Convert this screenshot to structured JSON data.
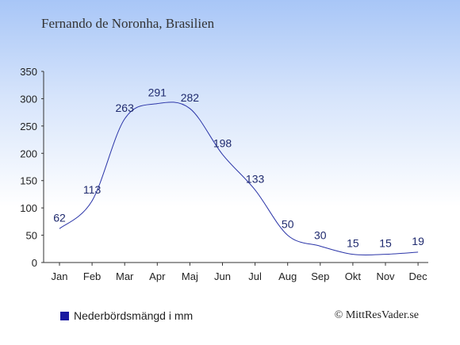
{
  "title": "Fernando de Noronha, Brasilien",
  "legend": {
    "label": "Nederbördsmängd i mm",
    "color": "#1a1aa0"
  },
  "credit": "© MittResVader.se",
  "colors": {
    "line": "#2b35a8",
    "label": "#1f2a6e",
    "axis": "#333333",
    "bg_top": "#a8c6f7"
  },
  "chart_data": {
    "type": "line",
    "categories": [
      "Jan",
      "Feb",
      "Mar",
      "Apr",
      "Maj",
      "Jun",
      "Jul",
      "Aug",
      "Sep",
      "Okt",
      "Nov",
      "Dec"
    ],
    "series": [
      {
        "name": "Nederbördsmängd i mm",
        "values": [
          62,
          113,
          263,
          291,
          282,
          198,
          133,
          50,
          30,
          15,
          15,
          19
        ]
      }
    ],
    "ylim": [
      0,
      350
    ],
    "yticks": [
      0,
      50,
      100,
      150,
      200,
      250,
      300,
      350
    ],
    "grid": false,
    "data_labels": true,
    "legend_position": "bottom-left"
  }
}
